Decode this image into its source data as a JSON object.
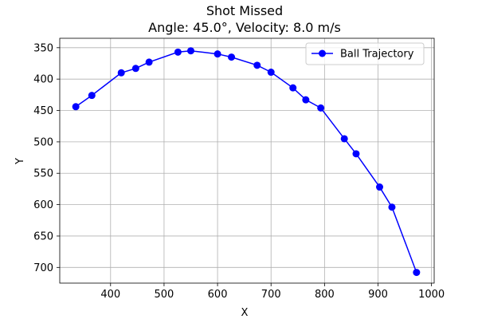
{
  "chart_data": {
    "type": "line",
    "title": "Shot Missed",
    "subtitle": "Angle: 45.0°, Velocity: 8.0 m/s",
    "xlabel": "X",
    "ylabel": "Y",
    "xlim": [
      305,
      1005
    ],
    "ylim": [
      725,
      335
    ],
    "y_inverted": true,
    "grid": true,
    "legend_position": "upper right",
    "x_ticks": [
      400,
      500,
      600,
      700,
      800,
      900,
      1000
    ],
    "y_ticks": [
      350,
      400,
      450,
      500,
      550,
      600,
      650,
      700
    ],
    "series": [
      {
        "name": "Ball Trajectory",
        "color": "#0000ff",
        "marker": "circle",
        "x": [
          335,
          365,
          420,
          447,
          472,
          526,
          550,
          600,
          626,
          674,
          700,
          741,
          765,
          793,
          837,
          859,
          903,
          926,
          972
        ],
        "y": [
          444,
          426,
          390,
          383,
          373,
          357,
          355,
          360,
          365,
          378,
          389,
          414,
          433,
          446,
          495,
          519,
          572,
          604,
          708
        ]
      }
    ]
  }
}
